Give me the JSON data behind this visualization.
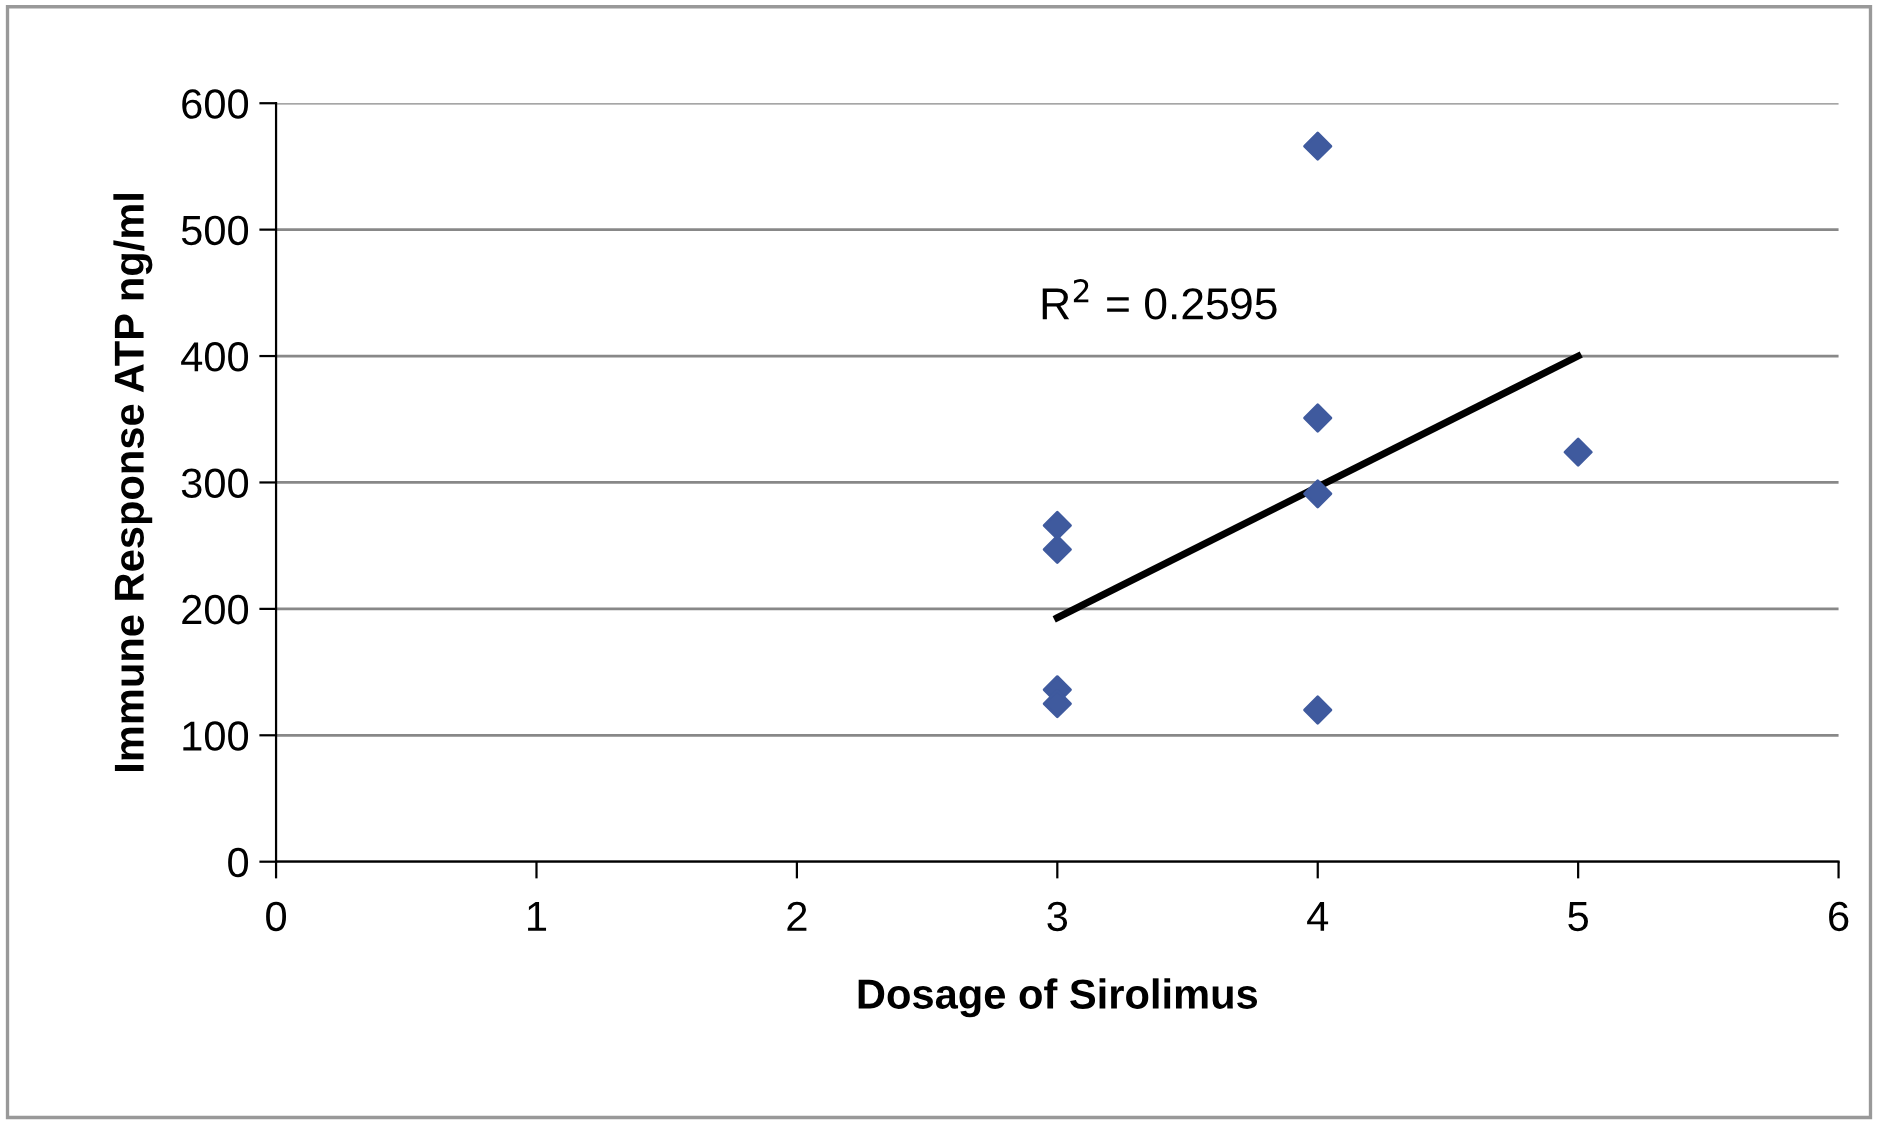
{
  "chart_data": {
    "type": "scatter",
    "xlabel": "Dosage of Sirolimus",
    "ylabel": "Immune Response ATP ng/ml",
    "series": [
      {
        "color": "#3f5a9e",
        "marker": "diamond",
        "x": [
          3,
          3,
          3,
          3,
          4,
          4,
          4,
          4,
          5
        ],
        "values": [
          266,
          247,
          136,
          125,
          566,
          351,
          291,
          120,
          324
        ]
      },
      {
        "type": "line",
        "marker": "none",
        "color": "#000000",
        "x": [
          3,
          5
        ],
        "values": [
          193,
          400
        ]
      }
    ],
    "xlim": [
      0,
      6
    ],
    "xticks": [
      0,
      1,
      2,
      3,
      4,
      5,
      6
    ],
    "ylim": [
      0,
      600
    ],
    "yticks": [
      0,
      100,
      200,
      300,
      400,
      500,
      600
    ],
    "grid": "y",
    "annotations": [
      "R$^{2}$ = 0.2595"
    ]
  }
}
